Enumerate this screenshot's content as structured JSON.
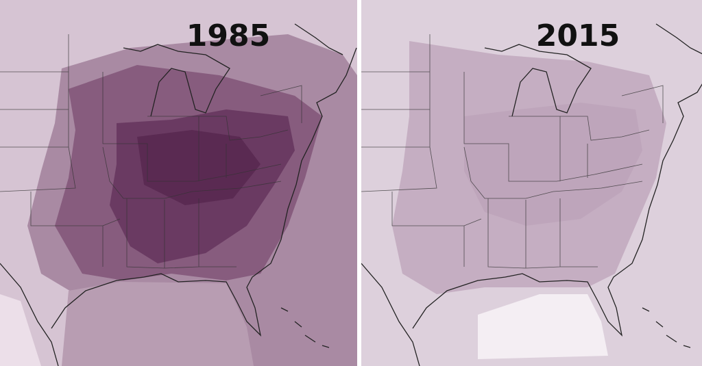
{
  "panels": [
    {
      "label": "1985"
    },
    {
      "label": "2015"
    }
  ]
}
